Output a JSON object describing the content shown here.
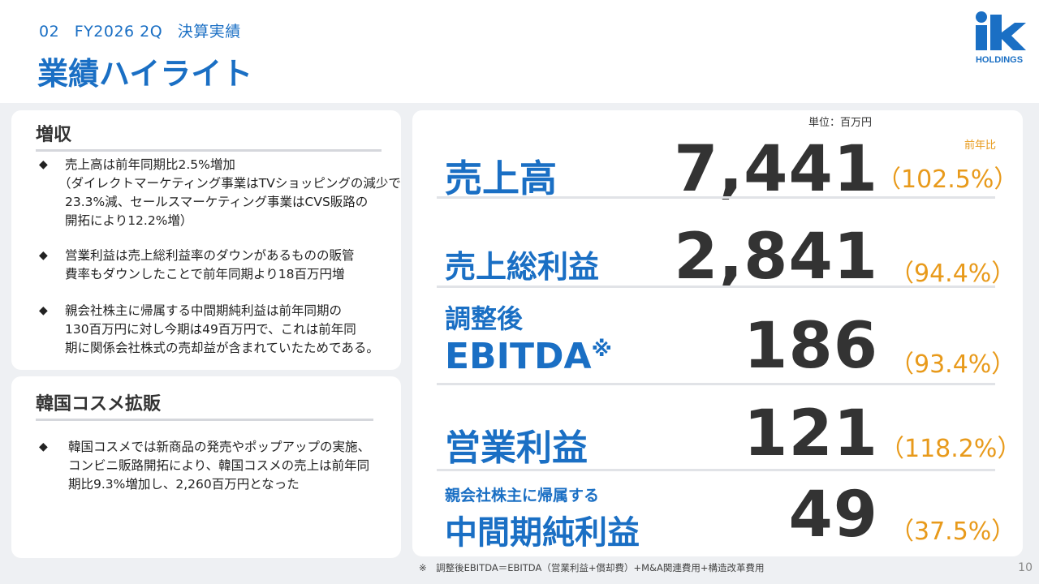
{
  "header": {
    "section_number": "02",
    "period": "FY2026 2Q",
    "section_name": "決算実績",
    "title": "業績ハイライト"
  },
  "logo": {
    "mark": "ik",
    "text": "HOLDINGS",
    "color": "#1a6fc4"
  },
  "card_revenue": {
    "heading": "増収",
    "bullets": [
      {
        "mark": "◆",
        "lines": [
          "売上高は前年同期比2.5%増加",
          "（ダイレクトマーケティング事業はTVショッピングの減少で",
          "23.3%減、セールスマーケティング事業はCVS販路の",
          "開拓により12.2%増）"
        ]
      },
      {
        "mark": "◆",
        "lines": [
          "営業利益は売上総利益率のダウンがあるものの販管",
          "費率もダウンしたことで前年同期より18百万円増"
        ]
      },
      {
        "mark": "◆",
        "lines": [
          "親会社株主に帰属する中間期純利益は前年同期の",
          "130百万円に対し今期は49百万円で、これは前年同",
          "期に関係会社株式の売却益が含まれていたためである。"
        ]
      }
    ]
  },
  "card_korea": {
    "heading": "韓国コスメ拡販",
    "bullets": [
      {
        "mark": "◆",
        "lines": [
          "韓国コスメでは新商品の発売やポップアップの実施、",
          "コンビニ販路開拓により、韓国コスメの売上は前年同",
          "期比9.3%増加し、2,260百万円となった"
        ]
      }
    ]
  },
  "metrics_card": {
    "unit": "単位：百万円",
    "yoy_header": "前年比",
    "metrics": [
      {
        "label_line1": "売上高",
        "value": "7,441",
        "ratio": "（102.5%）"
      },
      {
        "label_line1": "売上総利益",
        "value": "2,841",
        "ratio": "（94.4%）"
      },
      {
        "label_line1": "調整後",
        "label_line2": "EBITDA",
        "asterisk": "※",
        "value": "186",
        "ratio": "（93.4%）"
      },
      {
        "label_line1": "営業利益",
        "value": "121",
        "ratio": "（118.2%）"
      },
      {
        "label_line1": "親会社株主に帰属する",
        "label_line2": "中間期純利益",
        "value": "49",
        "ratio": "（37.5%）"
      }
    ]
  },
  "footnote": "※　調整後EBITDA＝EBITDA（営業利益+償却費）+M&A関連費用+構造改革費用",
  "page_number": "10",
  "colors": {
    "accent_blue": "#1a6fc4",
    "accent_orange": "#e89a1b",
    "background_gray": "#eef0f3"
  }
}
